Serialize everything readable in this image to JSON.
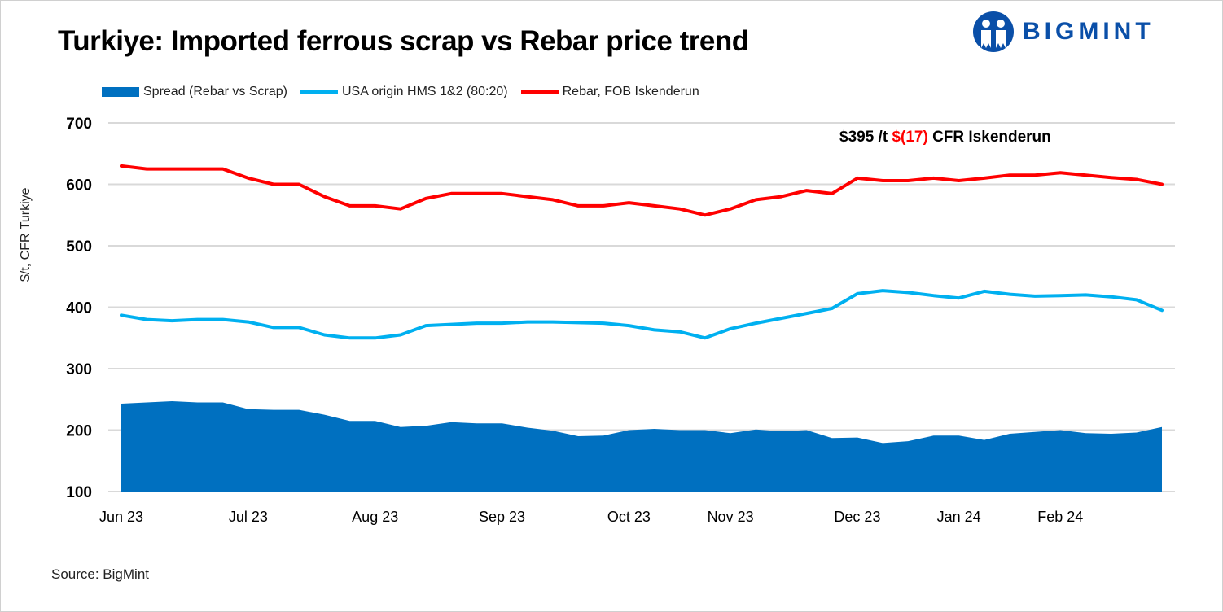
{
  "logo_text": "BIGMINT",
  "source": "Source: BigMint",
  "annotation": {
    "price": "$395 /t",
    "change": "$(17)",
    "basis": "CFR Iskenderun",
    "change_color": "#ff0000"
  },
  "chart_data": {
    "type": "line",
    "title": "Turkiye: Imported ferrous scrap vs Rebar price trend",
    "ylabel": "$/t, CFR Turkiye",
    "xlabel": "",
    "ylim": [
      100,
      700
    ],
    "yticks": [
      100,
      200,
      300,
      400,
      500,
      600,
      700
    ],
    "grid": true,
    "legend_position": "top-left",
    "x_tick_labels": [
      {
        "index": 0,
        "label": "Jun 23"
      },
      {
        "index": 5,
        "label": "Jul 23"
      },
      {
        "index": 10,
        "label": "Aug 23"
      },
      {
        "index": 15,
        "label": "Sep 23"
      },
      {
        "index": 20,
        "label": "Oct 23"
      },
      {
        "index": 24,
        "label": "Nov 23"
      },
      {
        "index": 29,
        "label": "Dec 23"
      },
      {
        "index": 33,
        "label": "Jan 24"
      },
      {
        "index": 37,
        "label": "Feb 24"
      }
    ],
    "series": [
      {
        "name": "Spread (Rebar vs Scrap)",
        "kind": "area",
        "color": "#0070c0",
        "values": [
          243,
          245,
          247,
          245,
          245,
          234,
          233,
          233,
          225,
          215,
          215,
          205,
          207,
          213,
          211,
          211,
          204,
          199,
          190,
          191,
          200,
          202,
          200,
          200,
          195,
          201,
          198,
          200,
          187,
          188,
          179,
          182,
          191,
          191,
          184,
          194,
          197,
          200,
          195,
          194,
          196,
          205
        ]
      },
      {
        "name": "USA origin HMS 1&2 (80:20)",
        "kind": "line",
        "color": "#00b0f0",
        "values": [
          387,
          380,
          378,
          380,
          380,
          376,
          367,
          367,
          355,
          350,
          350,
          355,
          370,
          372,
          374,
          374,
          376,
          376,
          375,
          374,
          370,
          363,
          360,
          350,
          365,
          374,
          382,
          390,
          398,
          422,
          427,
          424,
          419,
          415,
          426,
          421,
          418,
          419,
          420,
          417,
          412,
          395
        ]
      },
      {
        "name": "Rebar, FOB Iskenderun",
        "kind": "line",
        "color": "#ff0000",
        "values": [
          630,
          625,
          625,
          625,
          625,
          610,
          600,
          600,
          580,
          565,
          565,
          560,
          577,
          585,
          585,
          585,
          580,
          575,
          565,
          565,
          570,
          565,
          560,
          550,
          560,
          575,
          580,
          590,
          585,
          610,
          606,
          606,
          610,
          606,
          610,
          615,
          615,
          619,
          615,
          611,
          608,
          600
        ]
      }
    ]
  }
}
